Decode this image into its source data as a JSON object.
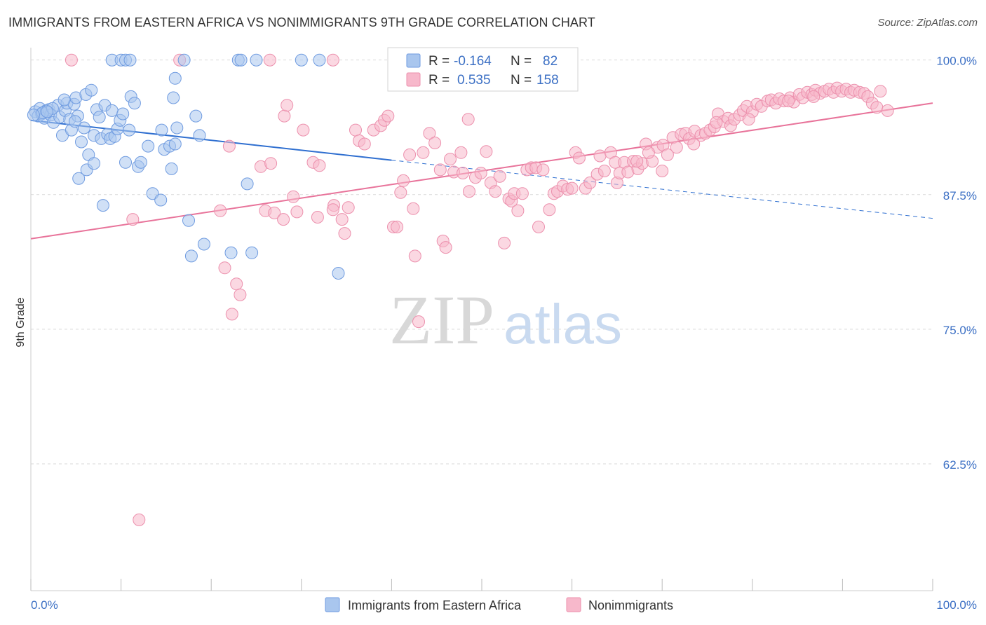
{
  "header": {
    "title": "IMMIGRANTS FROM EASTERN AFRICA VS NONIMMIGRANTS 9TH GRADE CORRELATION CHART",
    "source": "Source: ZipAtlas.com"
  },
  "watermark": {
    "zip": "ZIP",
    "atlas": "atlas"
  },
  "stats_box": {
    "rows": [
      {
        "r_label": "R =",
        "r_value": "-0.164",
        "n_label": "N =",
        "n_value": "82",
        "color": "#8fb3e6"
      },
      {
        "r_label": "R =",
        "r_value": "0.535",
        "n_label": "N =",
        "n_value": "158",
        "color": "#f4a6bf"
      }
    ]
  },
  "colors": {
    "blue_fill": "#a9c6ee",
    "blue_stroke": "#6f9be0",
    "blue_line": "#2f6fd0",
    "pink_fill": "#f7b8cb",
    "pink_stroke": "#ec90ad",
    "pink_line": "#e8739a",
    "tick_text": "#3b6fc4",
    "grid": "#d9d9d9"
  },
  "chart_data": {
    "type": "scatter",
    "title": "IMMIGRANTS FROM EASTERN AFRICA VS NONIMMIGRANTS 9TH GRADE CORRELATION CHART",
    "xlabel": "",
    "ylabel": "9th Grade",
    "xlim": [
      0,
      100
    ],
    "ylim": [
      51.5,
      100.5
    ],
    "x_tick_labels": [
      "0.0%",
      "100.0%"
    ],
    "y_ticks": [
      62.5,
      75.0,
      87.5,
      100.0
    ],
    "y_tick_labels": [
      "62.5%",
      "75.0%",
      "87.5%",
      "100.0%"
    ],
    "grid": "horizontal dashed",
    "legend_position": "bottom-center",
    "series": [
      {
        "name": "Immigrants from Eastern Africa",
        "color": "#a9c6ee",
        "r": -0.164,
        "n": 82,
        "trend": {
          "x_start": 0,
          "y_start": 94.4,
          "x_solid_end": 40,
          "y_solid_end": 90.7,
          "x_end": 100,
          "y_end": 85.3
        },
        "points": [
          [
            0.5,
            95.2
          ],
          [
            0.8,
            94.8
          ],
          [
            1.0,
            95.5
          ],
          [
            1.2,
            95.0
          ],
          [
            1.5,
            94.6
          ],
          [
            1.7,
            95.3
          ],
          [
            2.0,
            95.4
          ],
          [
            2.2,
            94.9
          ],
          [
            1.3,
            95.1
          ],
          [
            2.5,
            94.2
          ],
          [
            3.0,
            95.8
          ],
          [
            3.2,
            94.7
          ],
          [
            3.5,
            93.0
          ],
          [
            3.8,
            95.3
          ],
          [
            4.0,
            96.0
          ],
          [
            4.3,
            94.5
          ],
          [
            4.5,
            93.5
          ],
          [
            4.8,
            95.9
          ],
          [
            5.0,
            96.5
          ],
          [
            5.2,
            94.8
          ],
          [
            5.6,
            92.4
          ],
          [
            5.9,
            93.7
          ],
          [
            6.1,
            96.8
          ],
          [
            6.4,
            91.2
          ],
          [
            6.7,
            97.2
          ],
          [
            7.0,
            93.0
          ],
          [
            7.3,
            95.4
          ],
          [
            7.6,
            94.7
          ],
          [
            7.8,
            92.7
          ],
          [
            8.2,
            95.8
          ],
          [
            8.5,
            93.1
          ],
          [
            8.8,
            92.7
          ],
          [
            9.0,
            95.3
          ],
          [
            9.3,
            92.9
          ],
          [
            9.6,
            93.6
          ],
          [
            9.9,
            94.4
          ],
          [
            10.2,
            95.0
          ],
          [
            10.5,
            90.5
          ],
          [
            10.9,
            93.5
          ],
          [
            11.1,
            96.6
          ],
          [
            11.5,
            96.0
          ],
          [
            11.9,
            90.1
          ],
          [
            12.2,
            90.5
          ],
          [
            13.0,
            92.0
          ],
          [
            13.5,
            87.6
          ],
          [
            14.5,
            93.5
          ],
          [
            14.8,
            91.7
          ],
          [
            15.4,
            92.0
          ],
          [
            15.6,
            89.9
          ],
          [
            15.8,
            96.5
          ],
          [
            16.0,
            98.3
          ],
          [
            16.2,
            93.7
          ],
          [
            14.4,
            87.0
          ],
          [
            5.3,
            89.0
          ],
          [
            6.2,
            89.8
          ],
          [
            8.0,
            86.5
          ],
          [
            7.0,
            90.4
          ],
          [
            16.0,
            92.2
          ],
          [
            18.3,
            94.8
          ],
          [
            18.7,
            93.0
          ],
          [
            17.5,
            85.1
          ],
          [
            19.2,
            82.9
          ],
          [
            17.8,
            81.8
          ],
          [
            24.0,
            88.5
          ],
          [
            24.5,
            82.1
          ],
          [
            34.1,
            80.2
          ],
          [
            22.2,
            82.1
          ],
          [
            9.0,
            100.0
          ],
          [
            10.0,
            100.0
          ],
          [
            10.5,
            100.0
          ],
          [
            11.0,
            100.0
          ],
          [
            17.0,
            100.0
          ],
          [
            23.0,
            100.0
          ],
          [
            23.3,
            100.0
          ],
          [
            25.0,
            100.0
          ],
          [
            30.0,
            100.0
          ],
          [
            32.0,
            100.0
          ],
          [
            2.4,
            95.5
          ],
          [
            1.8,
            95.2
          ],
          [
            0.3,
            94.9
          ],
          [
            4.9,
            94.3
          ],
          [
            3.7,
            96.3
          ]
        ]
      },
      {
        "name": "Nonimmigrants",
        "color": "#f7b8cb",
        "r": 0.535,
        "n": 158,
        "trend": {
          "x_start": 0,
          "y_start": 83.4,
          "x_end": 100,
          "y_end": 96.0
        },
        "points": [
          [
            4.5,
            100.0
          ],
          [
            16.5,
            100.0
          ],
          [
            26.5,
            100.0
          ],
          [
            33.5,
            100.0
          ],
          [
            12.0,
            57.3
          ],
          [
            11.3,
            85.2
          ],
          [
            21.0,
            86.0
          ],
          [
            22.0,
            92.0
          ],
          [
            21.5,
            80.7
          ],
          [
            22.8,
            79.2
          ],
          [
            23.2,
            78.2
          ],
          [
            22.3,
            76.4
          ],
          [
            25.5,
            90.1
          ],
          [
            26.0,
            86.0
          ],
          [
            27.0,
            85.8
          ],
          [
            26.6,
            90.4
          ],
          [
            28.1,
            94.8
          ],
          [
            28.0,
            85.2
          ],
          [
            28.4,
            95.8
          ],
          [
            29.1,
            87.3
          ],
          [
            29.5,
            85.9
          ],
          [
            30.2,
            93.5
          ],
          [
            31.3,
            90.5
          ],
          [
            31.8,
            85.4
          ],
          [
            32.0,
            90.2
          ],
          [
            33.6,
            86.5
          ],
          [
            33.5,
            86.1
          ],
          [
            34.5,
            85.2
          ],
          [
            34.8,
            83.9
          ],
          [
            35.2,
            86.3
          ],
          [
            36.0,
            93.5
          ],
          [
            36.4,
            92.5
          ],
          [
            37.0,
            92.2
          ],
          [
            38.0,
            93.5
          ],
          [
            38.8,
            93.9
          ],
          [
            39.2,
            94.4
          ],
          [
            39.6,
            94.8
          ],
          [
            40.2,
            84.5
          ],
          [
            40.6,
            84.5
          ],
          [
            41.0,
            87.7
          ],
          [
            41.3,
            88.8
          ],
          [
            42.0,
            91.2
          ],
          [
            42.4,
            86.2
          ],
          [
            42.6,
            81.8
          ],
          [
            43.0,
            75.7
          ],
          [
            43.5,
            91.4
          ],
          [
            44.2,
            93.2
          ],
          [
            44.8,
            92.3
          ],
          [
            45.4,
            89.8
          ],
          [
            45.7,
            83.2
          ],
          [
            46.0,
            82.6
          ],
          [
            46.5,
            90.8
          ],
          [
            46.9,
            89.6
          ],
          [
            47.7,
            91.4
          ],
          [
            47.9,
            89.5
          ],
          [
            48.5,
            94.5
          ],
          [
            48.6,
            87.8
          ],
          [
            49.3,
            89.1
          ],
          [
            49.9,
            89.5
          ],
          [
            50.5,
            91.5
          ],
          [
            51.0,
            88.6
          ],
          [
            51.5,
            87.8
          ],
          [
            52.0,
            89.2
          ],
          [
            52.5,
            83.0
          ],
          [
            53.0,
            87.1
          ],
          [
            53.3,
            86.9
          ],
          [
            53.6,
            87.6
          ],
          [
            54.0,
            86.0
          ],
          [
            54.5,
            87.6
          ],
          [
            55.0,
            89.8
          ],
          [
            55.5,
            90.0
          ],
          [
            56.0,
            90.0
          ],
          [
            56.3,
            84.5
          ],
          [
            56.8,
            89.8
          ],
          [
            57.5,
            86.1
          ],
          [
            58.0,
            87.6
          ],
          [
            58.4,
            87.8
          ],
          [
            59.0,
            88.3
          ],
          [
            59.5,
            88.0
          ],
          [
            60.0,
            88.1
          ],
          [
            60.4,
            91.4
          ],
          [
            60.8,
            90.9
          ],
          [
            61.5,
            88.1
          ],
          [
            62.0,
            88.6
          ],
          [
            62.8,
            89.4
          ],
          [
            63.1,
            91.1
          ],
          [
            63.6,
            89.7
          ],
          [
            64.3,
            91.4
          ],
          [
            64.8,
            90.5
          ],
          [
            65.0,
            88.6
          ],
          [
            65.3,
            89.5
          ],
          [
            65.8,
            90.5
          ],
          [
            66.2,
            89.6
          ],
          [
            66.8,
            90.6
          ],
          [
            67.3,
            89.9
          ],
          [
            67.8,
            90.4
          ],
          [
            68.2,
            92.2
          ],
          [
            68.9,
            90.6
          ],
          [
            69.5,
            91.9
          ],
          [
            70.1,
            92.1
          ],
          [
            70.6,
            91.2
          ],
          [
            71.2,
            92.8
          ],
          [
            71.6,
            91.9
          ],
          [
            72.1,
            93.1
          ],
          [
            72.6,
            93.2
          ],
          [
            73.0,
            92.7
          ],
          [
            73.6,
            93.4
          ],
          [
            74.3,
            93.0
          ],
          [
            74.8,
            93.2
          ],
          [
            75.3,
            93.5
          ],
          [
            75.8,
            93.8
          ],
          [
            76.2,
            95.0
          ],
          [
            76.8,
            94.3
          ],
          [
            77.3,
            94.6
          ],
          [
            77.6,
            93.9
          ],
          [
            78.0,
            94.5
          ],
          [
            78.6,
            94.9
          ],
          [
            79.0,
            95.3
          ],
          [
            79.4,
            95.7
          ],
          [
            80.0,
            95.2
          ],
          [
            80.5,
            95.9
          ],
          [
            81.0,
            95.7
          ],
          [
            81.7,
            96.2
          ],
          [
            82.1,
            96.3
          ],
          [
            82.6,
            96.0
          ],
          [
            83.0,
            96.4
          ],
          [
            83.5,
            96.2
          ],
          [
            84.2,
            96.5
          ],
          [
            84.6,
            96.1
          ],
          [
            85.2,
            96.8
          ],
          [
            85.6,
            96.5
          ],
          [
            86.1,
            97.0
          ],
          [
            86.6,
            96.8
          ],
          [
            87.0,
            97.2
          ],
          [
            87.5,
            96.9
          ],
          [
            88.0,
            97.1
          ],
          [
            88.5,
            97.3
          ],
          [
            89.0,
            97.0
          ],
          [
            89.4,
            97.4
          ],
          [
            89.9,
            97.1
          ],
          [
            90.4,
            97.3
          ],
          [
            90.9,
            97.0
          ],
          [
            91.3,
            97.2
          ],
          [
            91.9,
            97.0
          ],
          [
            92.4,
            96.9
          ],
          [
            92.8,
            96.6
          ],
          [
            93.3,
            96.0
          ],
          [
            93.8,
            95.6
          ],
          [
            94.2,
            97.1
          ],
          [
            95.0,
            95.3
          ],
          [
            73.5,
            92.2
          ],
          [
            70.0,
            89.7
          ],
          [
            68.5,
            91.4
          ],
          [
            67.2,
            90.6
          ],
          [
            76.0,
            94.2
          ],
          [
            79.6,
            94.5
          ],
          [
            84.0,
            96.2
          ],
          [
            86.8,
            96.6
          ]
        ]
      }
    ]
  },
  "legend": {
    "items": [
      {
        "label": "Immigrants from Eastern Africa",
        "color": "#a9c6ee"
      },
      {
        "label": "Nonimmigrants",
        "color": "#f7b8cb"
      }
    ]
  }
}
